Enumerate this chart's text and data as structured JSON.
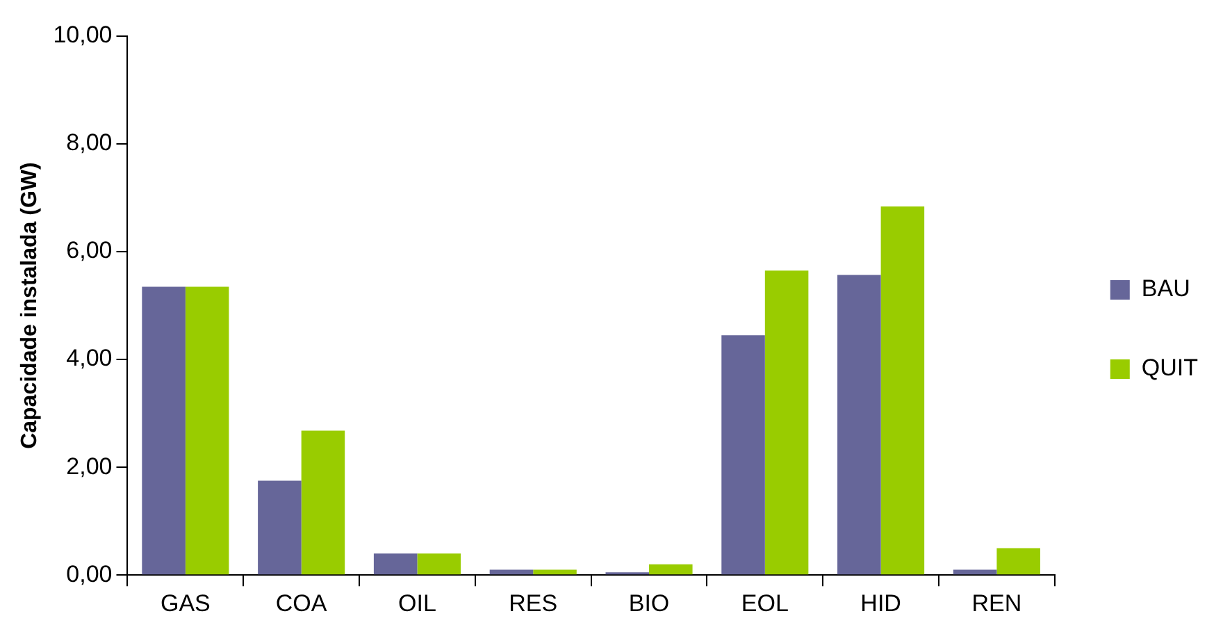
{
  "chart_data": {
    "type": "bar",
    "ylabel": "Capacidade instalada (GW)",
    "categories": [
      "GAS",
      "COA",
      "OIL",
      "RES",
      "BIO",
      "EOL",
      "HID",
      "REN"
    ],
    "series": [
      {
        "name": "BAU",
        "color": "#666699",
        "values": [
          5.35,
          1.75,
          0.4,
          0.1,
          0.05,
          4.45,
          5.57,
          0.1
        ]
      },
      {
        "name": "QUIT",
        "color": "#99cc00",
        "values": [
          5.35,
          2.68,
          0.4,
          0.1,
          0.2,
          5.65,
          6.84,
          0.5
        ]
      }
    ],
    "ylim": [
      0,
      10
    ],
    "yticks": [
      {
        "value": 0,
        "label": "0,00"
      },
      {
        "value": 2,
        "label": "2,00"
      },
      {
        "value": 4,
        "label": "4,00"
      },
      {
        "value": 6,
        "label": "6,00"
      },
      {
        "value": 8,
        "label": "8,00"
      },
      {
        "value": 10,
        "label": "10,00"
      }
    ],
    "legend": "right",
    "grid": false
  }
}
